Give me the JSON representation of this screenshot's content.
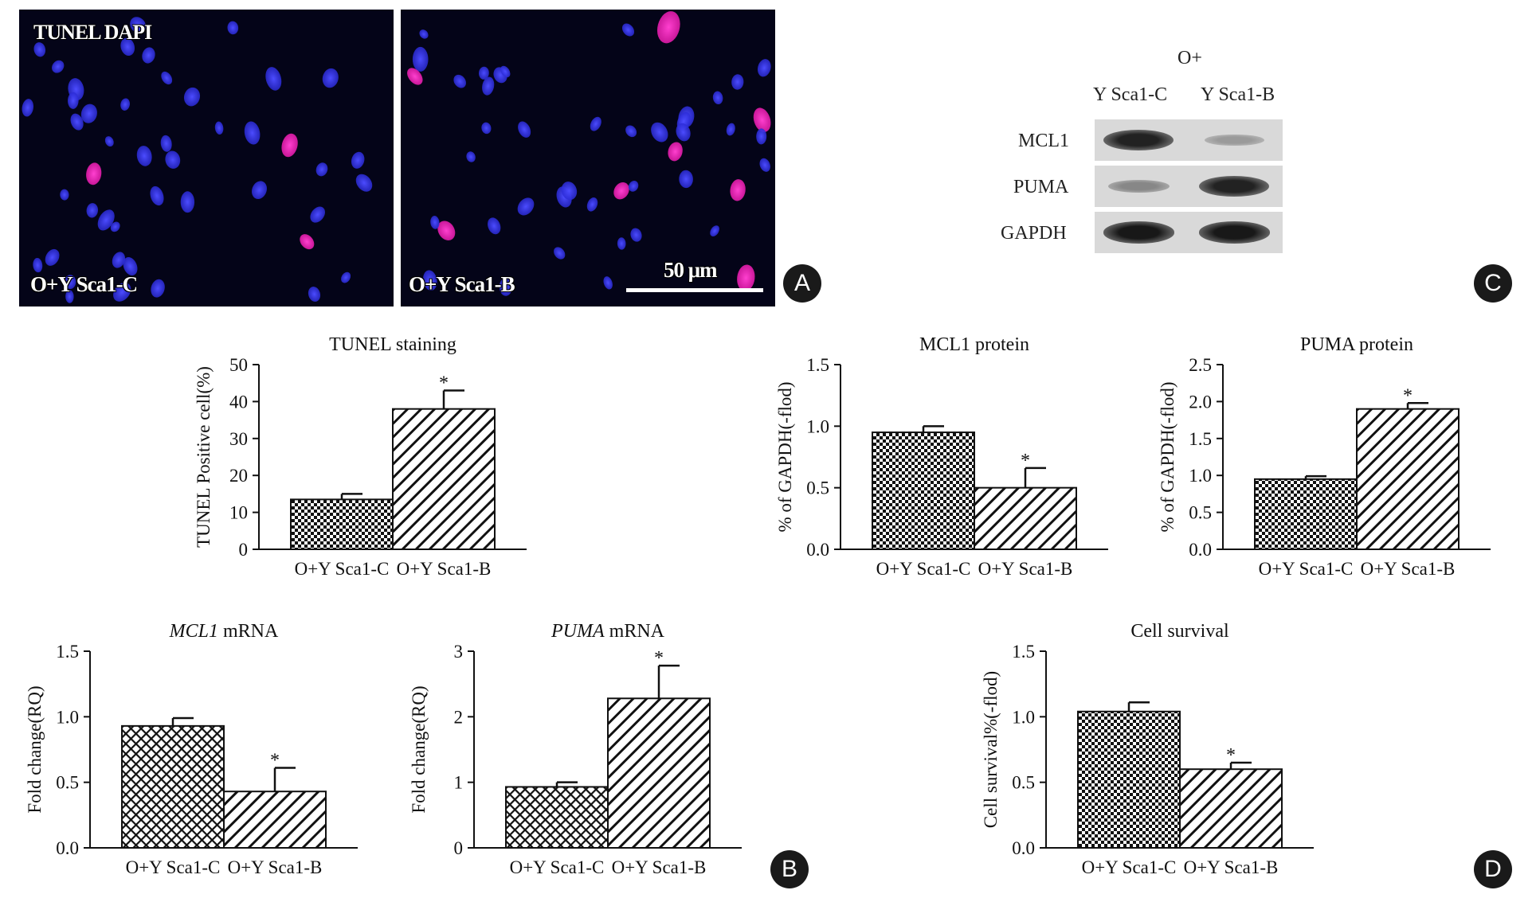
{
  "panel_badges": {
    "a": "A",
    "b": "B",
    "c": "C",
    "d": "D"
  },
  "micrographs": {
    "legend": "TUNEL DAPI",
    "left_label": "O+Y Sca1-C",
    "right_label": "O+Y Sca1-B",
    "scale_label": "50 μm",
    "colors": {
      "background": "#040418",
      "dapi": "#2b2bd6",
      "tunel": "#e01aa8"
    }
  },
  "western_blot": {
    "group_label": "O+",
    "lane_labels": [
      "Y Sca1-C",
      "Y Sca1-B"
    ],
    "row_labels": [
      "MCL1",
      "PUMA",
      "GAPDH"
    ],
    "band_intensity": [
      [
        0.9,
        0.25
      ],
      [
        0.35,
        0.9
      ],
      [
        0.95,
        0.95
      ]
    ]
  },
  "chart_data": [
    {
      "id": "tunel",
      "type": "bar",
      "title": "TUNEL staining",
      "title_italic": "",
      "ylabel": "TUNEL Positive cell(%)",
      "xlabel": "",
      "categories": [
        "O+Y Sca1-C",
        "O+Y Sca1-B"
      ],
      "values": [
        13.5,
        38
      ],
      "errors": [
        1.5,
        5
      ],
      "significant": [
        false,
        true
      ],
      "ylim": [
        0,
        50
      ],
      "yticks": [
        "0",
        "10",
        "20",
        "30",
        "40",
        "50"
      ],
      "patterns": [
        "checker",
        "diag"
      ]
    },
    {
      "id": "mcl1_protein",
      "type": "bar",
      "title": "MCL1 protein",
      "title_italic": "",
      "ylabel": "% of GAPDH(-flod)",
      "xlabel": "",
      "categories": [
        "O+Y Sca1-C",
        "O+Y Sca1-B"
      ],
      "values": [
        0.95,
        0.5
      ],
      "errors": [
        0.05,
        0.16
      ],
      "significant": [
        false,
        true
      ],
      "ylim": [
        0,
        1.5
      ],
      "yticks": [
        "0.0",
        "0.5",
        "1.0",
        "1.5"
      ],
      "patterns": [
        "checker",
        "diag"
      ]
    },
    {
      "id": "puma_protein",
      "type": "bar",
      "title": "PUMA protein",
      "title_italic": "",
      "ylabel": "% of GAPDH(-flod)",
      "xlabel": "",
      "categories": [
        "O+Y Sca1-C",
        "O+Y Sca1-B"
      ],
      "values": [
        0.95,
        1.9
      ],
      "errors": [
        0.04,
        0.08
      ],
      "significant": [
        false,
        true
      ],
      "ylim": [
        0,
        2.5
      ],
      "yticks": [
        "0.0",
        "0.5",
        "1.0",
        "1.5",
        "2.0",
        "2.5"
      ],
      "patterns": [
        "checker",
        "diag"
      ]
    },
    {
      "id": "mcl1_mrna",
      "type": "bar",
      "title": " mRNA",
      "title_italic": "MCL1",
      "ylabel": "Fold change(RQ)",
      "xlabel": "",
      "categories": [
        "O+Y Sca1-C",
        "O+Y Sca1-B"
      ],
      "values": [
        0.93,
        0.43
      ],
      "errors": [
        0.06,
        0.18
      ],
      "significant": [
        false,
        true
      ],
      "ylim": [
        0,
        1.5
      ],
      "yticks": [
        "0.0",
        "0.5",
        "1.0",
        "1.5"
      ],
      "patterns": [
        "cross",
        "diag"
      ]
    },
    {
      "id": "puma_mrna",
      "type": "bar",
      "title": " mRNA",
      "title_italic": "PUMA",
      "ylabel": "Fold change(RQ)",
      "xlabel": "",
      "categories": [
        "O+Y Sca1-C",
        "O+Y Sca1-B"
      ],
      "values": [
        0.93,
        2.28
      ],
      "errors": [
        0.07,
        0.5
      ],
      "significant": [
        false,
        true
      ],
      "ylim": [
        0,
        3
      ],
      "yticks": [
        "0",
        "1",
        "2",
        "3"
      ],
      "patterns": [
        "cross",
        "diag"
      ]
    },
    {
      "id": "cell_survival",
      "type": "bar",
      "title": "Cell survival",
      "title_italic": "",
      "ylabel": "Cell survival%(-flod)",
      "xlabel": "",
      "categories": [
        "O+Y Sca1-C",
        "O+Y Sca1-B"
      ],
      "values": [
        1.04,
        0.6
      ],
      "errors": [
        0.07,
        0.05
      ],
      "significant": [
        false,
        true
      ],
      "ylim": [
        0,
        1.5
      ],
      "yticks": [
        "0.0",
        "0.5",
        "1.0",
        "1.5"
      ],
      "patterns": [
        "checker",
        "diag"
      ]
    }
  ],
  "significance_marker": "*"
}
